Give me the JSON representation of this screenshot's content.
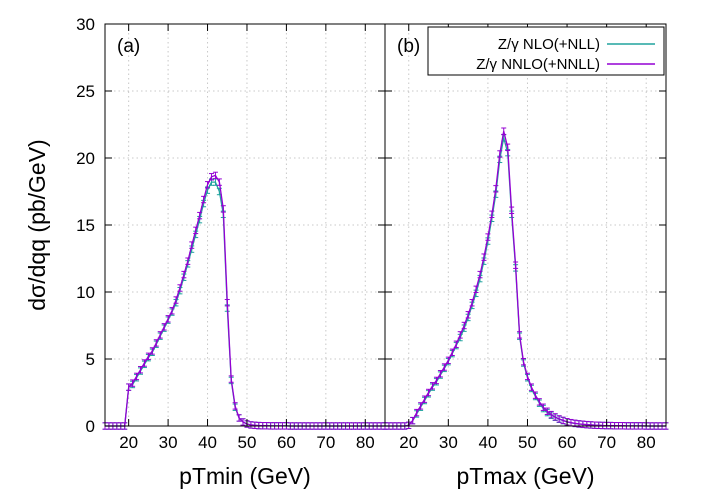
{
  "chart_data": [
    {
      "type": "line",
      "panel_label": "(a)",
      "xlabel": "pTmin (GeV)",
      "ylabel": "dσ/dqq (pb/GeV)",
      "xlim": [
        14,
        85
      ],
      "ylim": [
        0,
        30
      ],
      "xticks": [
        20,
        30,
        40,
        50,
        60,
        70,
        80
      ],
      "yticks": [
        0,
        5,
        10,
        15,
        20,
        25,
        30
      ],
      "grid": true,
      "error_bars": true,
      "series": [
        {
          "name": "Z/γ NLO(+NLL)",
          "color": "#20a39e",
          "x": [
            14,
            15,
            16,
            17,
            18,
            19,
            20,
            21,
            22,
            23,
            24,
            25,
            26,
            27,
            28,
            29,
            30,
            31,
            32,
            33,
            34,
            35,
            36,
            37,
            38,
            39,
            40,
            41,
            42,
            43,
            44,
            45,
            46,
            47,
            48,
            49,
            50,
            51,
            52,
            53,
            54,
            55,
            56,
            57,
            58,
            59,
            60,
            61,
            62,
            63,
            64,
            65,
            66,
            67,
            68,
            69,
            70,
            71,
            72,
            73,
            74,
            75,
            76,
            77,
            78,
            79,
            80,
            81,
            82,
            83,
            84,
            85
          ],
          "y": [
            0,
            0,
            0,
            0,
            0,
            0,
            2.9,
            3.1,
            3.6,
            4.1,
            4.6,
            5.1,
            5.5,
            6.1,
            6.7,
            7.3,
            7.9,
            8.5,
            9.2,
            10.1,
            11.1,
            12.1,
            13.2,
            14.3,
            15.4,
            16.6,
            17.6,
            18.2,
            18.2,
            17.5,
            15.8,
            8.8,
            3.4,
            1.4,
            0.6,
            0.3,
            0.15,
            0.08,
            0.05,
            0.03,
            0.02,
            0.02,
            0.01,
            0.01,
            0.01,
            0.01,
            0.01,
            0,
            0,
            0,
            0,
            0,
            0,
            0,
            0,
            0,
            0,
            0,
            0,
            0,
            0,
            0,
            0,
            0,
            0,
            0,
            0,
            0,
            0,
            0,
            0,
            0
          ]
        },
        {
          "name": "Z/γ NNLO(+NNLL)",
          "color": "#9400d3",
          "x": [
            14,
            15,
            16,
            17,
            18,
            19,
            20,
            21,
            22,
            23,
            24,
            25,
            26,
            27,
            28,
            29,
            30,
            31,
            32,
            33,
            34,
            35,
            36,
            37,
            38,
            39,
            40,
            41,
            42,
            43,
            44,
            45,
            46,
            47,
            48,
            49,
            50,
            51,
            52,
            53,
            54,
            55,
            56,
            57,
            58,
            59,
            60,
            61,
            62,
            63,
            64,
            65,
            66,
            67,
            68,
            69,
            70,
            71,
            72,
            73,
            74,
            75,
            76,
            77,
            78,
            79,
            80,
            81,
            82,
            83,
            84,
            85
          ],
          "y": [
            0,
            0,
            0,
            0,
            0,
            0,
            2.9,
            3.2,
            3.7,
            4.2,
            4.7,
            5.2,
            5.6,
            6.2,
            6.8,
            7.4,
            8.0,
            8.6,
            9.4,
            10.3,
            11.3,
            12.3,
            13.5,
            14.6,
            15.7,
            16.9,
            18.0,
            18.6,
            18.7,
            18.2,
            16.2,
            9.2,
            3.5,
            1.5,
            0.6,
            0.3,
            0.15,
            0.08,
            0.05,
            0.03,
            0.02,
            0.02,
            0.01,
            0.01,
            0.01,
            0.01,
            0.01,
            0,
            0,
            0,
            0,
            0,
            0,
            0,
            0,
            0,
            0,
            0,
            0,
            0,
            0,
            0,
            0,
            0,
            0,
            0,
            0,
            0,
            0,
            0,
            0,
            0
          ]
        }
      ]
    },
    {
      "type": "line",
      "panel_label": "(b)",
      "xlabel": "pTmax (GeV)",
      "xlim": [
        14,
        85
      ],
      "ylim": [
        0,
        30
      ],
      "xticks": [
        20,
        30,
        40,
        50,
        60,
        70,
        80
      ],
      "grid": true,
      "error_bars": true,
      "legend": "top-right",
      "series": [
        {
          "name": "Z/γ NLO(+NLL)",
          "color": "#20a39e",
          "x": [
            14,
            15,
            16,
            17,
            18,
            19,
            20,
            21,
            22,
            23,
            24,
            25,
            26,
            27,
            28,
            29,
            30,
            31,
            32,
            33,
            34,
            35,
            36,
            37,
            38,
            39,
            40,
            41,
            42,
            43,
            44,
            45,
            46,
            47,
            48,
            49,
            50,
            51,
            52,
            53,
            54,
            55,
            56,
            57,
            58,
            59,
            60,
            61,
            62,
            63,
            64,
            65,
            66,
            67,
            68,
            69,
            70,
            71,
            72,
            73,
            74,
            75,
            76,
            77,
            78,
            79,
            80,
            81,
            82,
            83,
            84,
            85
          ],
          "y": [
            0,
            0,
            0,
            0,
            0,
            0,
            0.05,
            0.4,
            0.9,
            1.4,
            1.9,
            2.4,
            2.9,
            3.3,
            3.8,
            4.3,
            4.8,
            5.4,
            6.0,
            6.6,
            7.3,
            8.1,
            9.0,
            9.9,
            11.0,
            12.3,
            13.8,
            15.5,
            17.3,
            19.9,
            21.5,
            20.4,
            15.8,
            11.8,
            6.7,
            4.7,
            3.6,
            2.8,
            2.2,
            1.7,
            1.3,
            1.0,
            0.8,
            0.65,
            0.5,
            0.4,
            0.3,
            0.24,
            0.19,
            0.15,
            0.12,
            0.1,
            0.08,
            0.06,
            0.05,
            0.04,
            0.03,
            0.03,
            0.02,
            0.02,
            0.02,
            0.01,
            0.01,
            0.01,
            0.01,
            0.01,
            0,
            0,
            0,
            0,
            0,
            0
          ]
        },
        {
          "name": "Z/γ NNLO(+NNLL)",
          "color": "#9400d3",
          "x": [
            14,
            15,
            16,
            17,
            18,
            19,
            20,
            21,
            22,
            23,
            24,
            25,
            26,
            27,
            28,
            29,
            30,
            31,
            32,
            33,
            34,
            35,
            36,
            37,
            38,
            39,
            40,
            41,
            42,
            43,
            44,
            45,
            46,
            47,
            48,
            49,
            50,
            51,
            52,
            53,
            54,
            55,
            56,
            57,
            58,
            59,
            60,
            61,
            62,
            63,
            64,
            65,
            66,
            67,
            68,
            69,
            70,
            71,
            72,
            73,
            74,
            75,
            76,
            77,
            78,
            79,
            80,
            81,
            82,
            83,
            84,
            85
          ],
          "y": [
            0,
            0,
            0,
            0,
            0,
            0,
            0.05,
            0.4,
            1.0,
            1.5,
            2.0,
            2.5,
            3.0,
            3.4,
            3.9,
            4.4,
            4.9,
            5.5,
            6.1,
            6.8,
            7.5,
            8.3,
            9.2,
            10.2,
            11.3,
            12.6,
            14.1,
            15.8,
            17.7,
            20.3,
            22.0,
            20.8,
            16.1,
            12.0,
            6.8,
            4.8,
            3.7,
            2.9,
            2.3,
            1.8,
            1.4,
            1.1,
            0.85,
            0.68,
            0.53,
            0.42,
            0.32,
            0.25,
            0.2,
            0.16,
            0.13,
            0.1,
            0.08,
            0.06,
            0.05,
            0.04,
            0.03,
            0.03,
            0.02,
            0.02,
            0.02,
            0.01,
            0.01,
            0.01,
            0.01,
            0.01,
            0,
            0,
            0,
            0,
            0,
            0
          ]
        }
      ]
    }
  ]
}
